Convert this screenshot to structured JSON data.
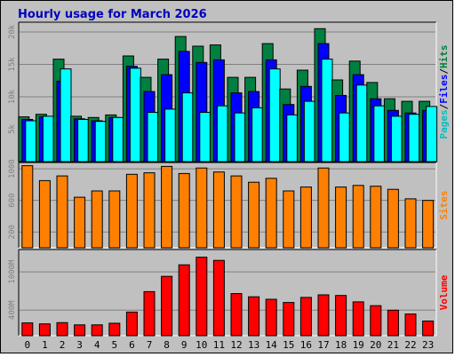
{
  "chart_data": [
    {
      "type": "bar",
      "title": "Hourly usage for March 2026",
      "categories": [
        "0",
        "1",
        "2",
        "3",
        "4",
        "5",
        "6",
        "7",
        "8",
        "9",
        "10",
        "11",
        "12",
        "13",
        "14",
        "15",
        "16",
        "17",
        "18",
        "19",
        "20",
        "21",
        "22",
        "23"
      ],
      "yticks": [
        "5k",
        "10k",
        "15k",
        "20k"
      ],
      "ylim": [
        0,
        21500
      ],
      "legend": [
        "Pages",
        "/",
        "Files",
        "/",
        "Hits"
      ],
      "series": [
        {
          "name": "Hits",
          "color": "#008040",
          "values": [
            6900,
            7300,
            15800,
            7000,
            6800,
            7200,
            16300,
            13000,
            15800,
            19300,
            17800,
            18000,
            13000,
            13000,
            18200,
            11200,
            14100,
            20500,
            12600,
            15500,
            12200,
            9700,
            9300,
            9300
          ]
        },
        {
          "name": "Files",
          "color": "#0000ff",
          "values": [
            6500,
            6900,
            12400,
            6600,
            6300,
            6800,
            14700,
            10800,
            13400,
            17000,
            15300,
            15700,
            10600,
            10800,
            15700,
            8800,
            11600,
            18200,
            10200,
            13400,
            9700,
            7900,
            7500,
            7900
          ]
        },
        {
          "name": "Pages",
          "color": "#00ffff",
          "values": [
            6300,
            7000,
            14300,
            6500,
            6200,
            6800,
            14400,
            7600,
            8100,
            10600,
            7600,
            8600,
            7500,
            8300,
            14300,
            7200,
            9300,
            15800,
            7500,
            11800,
            8600,
            7000,
            7300,
            8500
          ]
        }
      ]
    },
    {
      "type": "bar",
      "yticks": [
        "200",
        "600",
        "1000"
      ],
      "ylim": [
        0,
        1080
      ],
      "legend": "Sites",
      "series": [
        {
          "name": "Sites",
          "color": "#ff8000",
          "values": [
            1040,
            850,
            910,
            640,
            720,
            720,
            930,
            950,
            1030,
            940,
            1010,
            960,
            910,
            830,
            880,
            720,
            770,
            1010,
            770,
            790,
            780,
            740,
            620,
            600
          ]
        }
      ]
    },
    {
      "type": "bar",
      "yticks": [
        "400M",
        "1000M"
      ],
      "ylim": [
        0,
        1350
      ],
      "legend": "Volume",
      "series": [
        {
          "name": "Volume",
          "color": "#ff0000",
          "values": [
            200,
            185,
            205,
            170,
            170,
            195,
            370,
            690,
            930,
            1110,
            1230,
            1180,
            660,
            610,
            570,
            520,
            600,
            640,
            630,
            530,
            470,
            400,
            340,
            230
          ]
        }
      ]
    }
  ]
}
